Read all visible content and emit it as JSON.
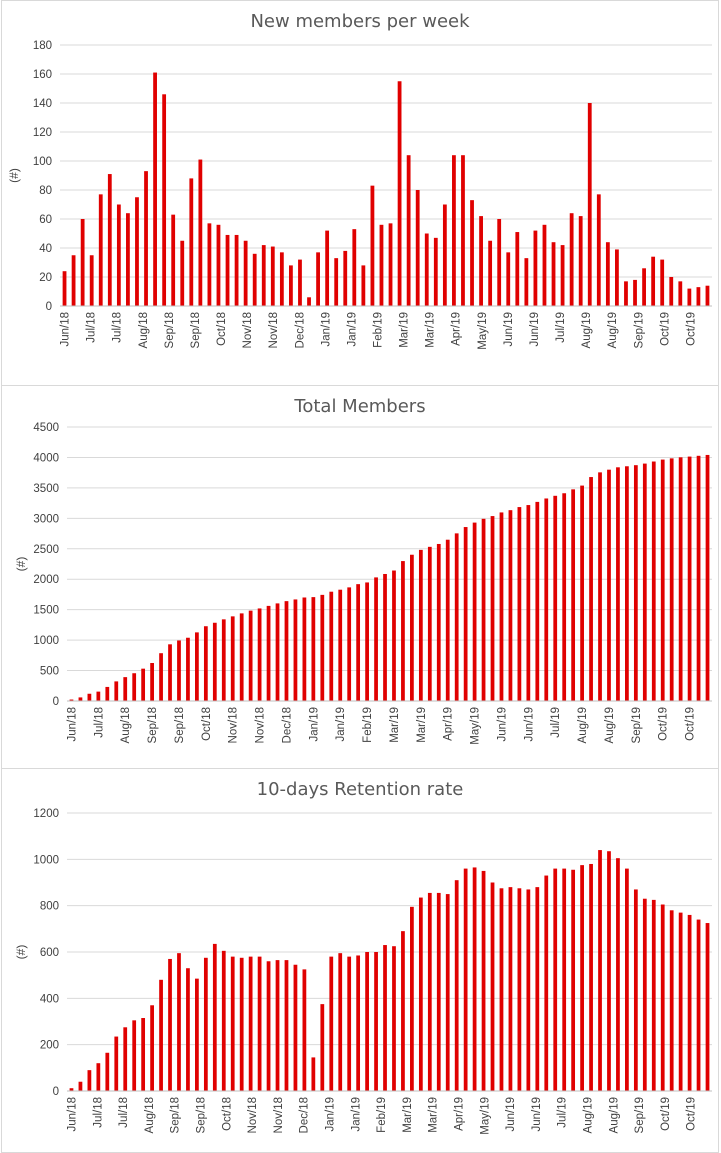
{
  "chart_data": [
    {
      "type": "bar",
      "title": "New members per week",
      "ylabel": "(#)",
      "ylim": [
        0,
        180
      ],
      "yticks": [
        0,
        20,
        40,
        60,
        80,
        100,
        120,
        140,
        160,
        180
      ],
      "color": "#e00000",
      "xtick_labels": [
        "Jun/18",
        "Jul/18",
        "Jul/18",
        "Aug/18",
        "Sep/18",
        "Sep/18",
        "Oct/18",
        "Nov/18",
        "Nov/18",
        "Dec/18",
        "Jan/19",
        "Jan/19",
        "Feb/19",
        "Mar/19",
        "Mar/19",
        "Apr/19",
        "May/19",
        "Jun/19",
        "Jun/19",
        "Jul/19",
        "Aug/19",
        "Aug/19",
        "Sep/19",
        "Oct/19",
        "Oct/19"
      ],
      "values": [
        24,
        35,
        60,
        35,
        77,
        91,
        70,
        64,
        75,
        93,
        161,
        146,
        63,
        45,
        88,
        101,
        57,
        56,
        49,
        49,
        45,
        36,
        42,
        41,
        37,
        28,
        32,
        6,
        37,
        52,
        33,
        38,
        53,
        28,
        83,
        56,
        57,
        155,
        104,
        80,
        50,
        47,
        70,
        104,
        104,
        73,
        62,
        45,
        60,
        37,
        51,
        33,
        52,
        56,
        44,
        42,
        64,
        62,
        140,
        77,
        44,
        39,
        17,
        18,
        26,
        34,
        32,
        20,
        17,
        12,
        13,
        14
      ]
    },
    {
      "type": "bar",
      "title": "Total Members",
      "ylabel": "(#)",
      "ylim": [
        0,
        4500
      ],
      "yticks": [
        0,
        500,
        1000,
        1500,
        2000,
        2500,
        3000,
        3500,
        4000,
        4500
      ],
      "color": "#e00000",
      "xtick_labels": [
        "Jun/18",
        "Jul/18",
        "Aug/18",
        "Sep/18",
        "Sep/18",
        "Oct/18",
        "Nov/18",
        "Nov/18",
        "Dec/18",
        "Jan/19",
        "Jan/19",
        "Feb/19",
        "Mar/19",
        "Mar/19",
        "Apr/19",
        "May/19",
        "Jun/19",
        "Jun/19",
        "Jul/19",
        "Aug/19",
        "Aug/19",
        "Sep/19",
        "Oct/19",
        "Oct/19"
      ],
      "values": [
        24,
        59,
        119,
        154,
        231,
        322,
        392,
        456,
        531,
        624,
        785,
        931,
        994,
        1039,
        1127,
        1228,
        1285,
        1341,
        1390,
        1439,
        1484,
        1520,
        1562,
        1603,
        1640,
        1668,
        1700,
        1706,
        1743,
        1795,
        1828,
        1866,
        1919,
        1947,
        2030,
        2086,
        2143,
        2298,
        2402,
        2482,
        2532,
        2579,
        2649,
        2753,
        2857,
        2930,
        2992,
        3037,
        3097,
        3134,
        3185,
        3218,
        3270,
        3326,
        3370,
        3412,
        3476,
        3538,
        3678,
        3755,
        3799,
        3838,
        3855,
        3873,
        3899,
        3933,
        3965,
        3985,
        4002,
        4014,
        4027,
        4041
      ]
    },
    {
      "type": "bar",
      "title": "10-days Retention rate",
      "ylabel": "(#)",
      "ylim": [
        0,
        1200
      ],
      "yticks": [
        0,
        200,
        400,
        600,
        800,
        1000,
        1200
      ],
      "color": "#e00000",
      "xtick_labels": [
        "Jun/18",
        "Jul/18",
        "Jul/18",
        "Aug/18",
        "Sep/18",
        "Sep/18",
        "Oct/18",
        "Nov/18",
        "Nov/18",
        "Dec/18",
        "Jan/19",
        "Jan/19",
        "Feb/19",
        "Mar/19",
        "Mar/19",
        "Apr/19",
        "May/19",
        "Jun/19",
        "Jun/19",
        "Jul/19",
        "Aug/19",
        "Aug/19",
        "Sep/19",
        "Oct/19",
        "Oct/19"
      ],
      "values": [
        12,
        40,
        90,
        120,
        165,
        235,
        275,
        305,
        315,
        370,
        480,
        570,
        595,
        530,
        485,
        575,
        635,
        605,
        580,
        575,
        580,
        580,
        560,
        565,
        565,
        545,
        525,
        145,
        375,
        580,
        595,
        580,
        585,
        600,
        600,
        630,
        625,
        690,
        795,
        835,
        855,
        855,
        850,
        910,
        960,
        965,
        950,
        900,
        875,
        880,
        875,
        870,
        880,
        930,
        960,
        960,
        955,
        975,
        980,
        1040,
        1035,
        1005,
        960,
        870,
        830,
        825,
        805,
        780,
        770,
        760,
        740,
        725
      ]
    }
  ]
}
